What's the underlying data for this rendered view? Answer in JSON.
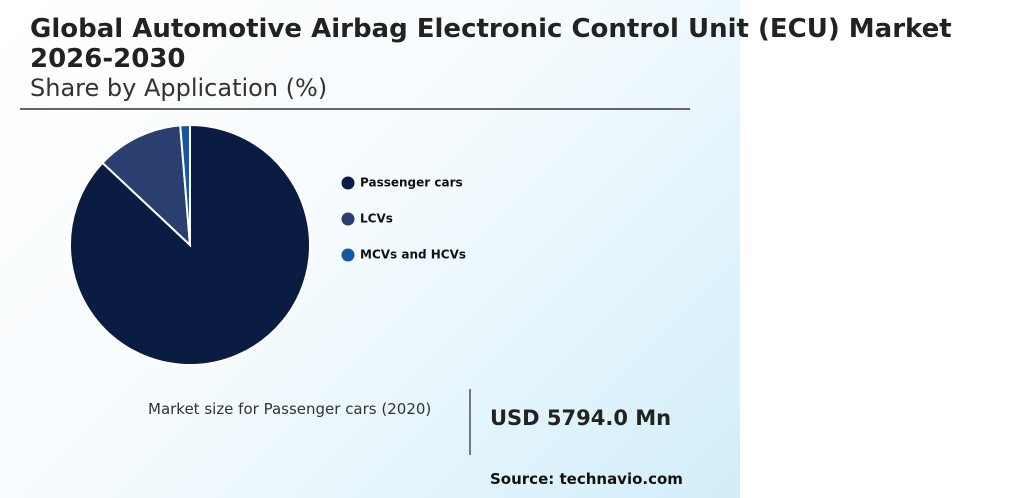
{
  "chart_data": {
    "type": "pie",
    "title": "Global Automotive Airbag Electronic Control Unit (ECU) Market 2026-2030",
    "subtitle": "Share by Application (%)",
    "categories": [
      "Passenger cars",
      "LCVs",
      "MCVs and HCVs"
    ],
    "values": [
      87.0,
      11.7,
      1.3
    ],
    "colors": [
      "#0a1c42",
      "#2a3f70",
      "#1457a3"
    ]
  },
  "market_size": {
    "label": "Market size for Passenger cars (2020)",
    "value": "USD 5794.0 Mn"
  },
  "source": "Source: technavio.com"
}
